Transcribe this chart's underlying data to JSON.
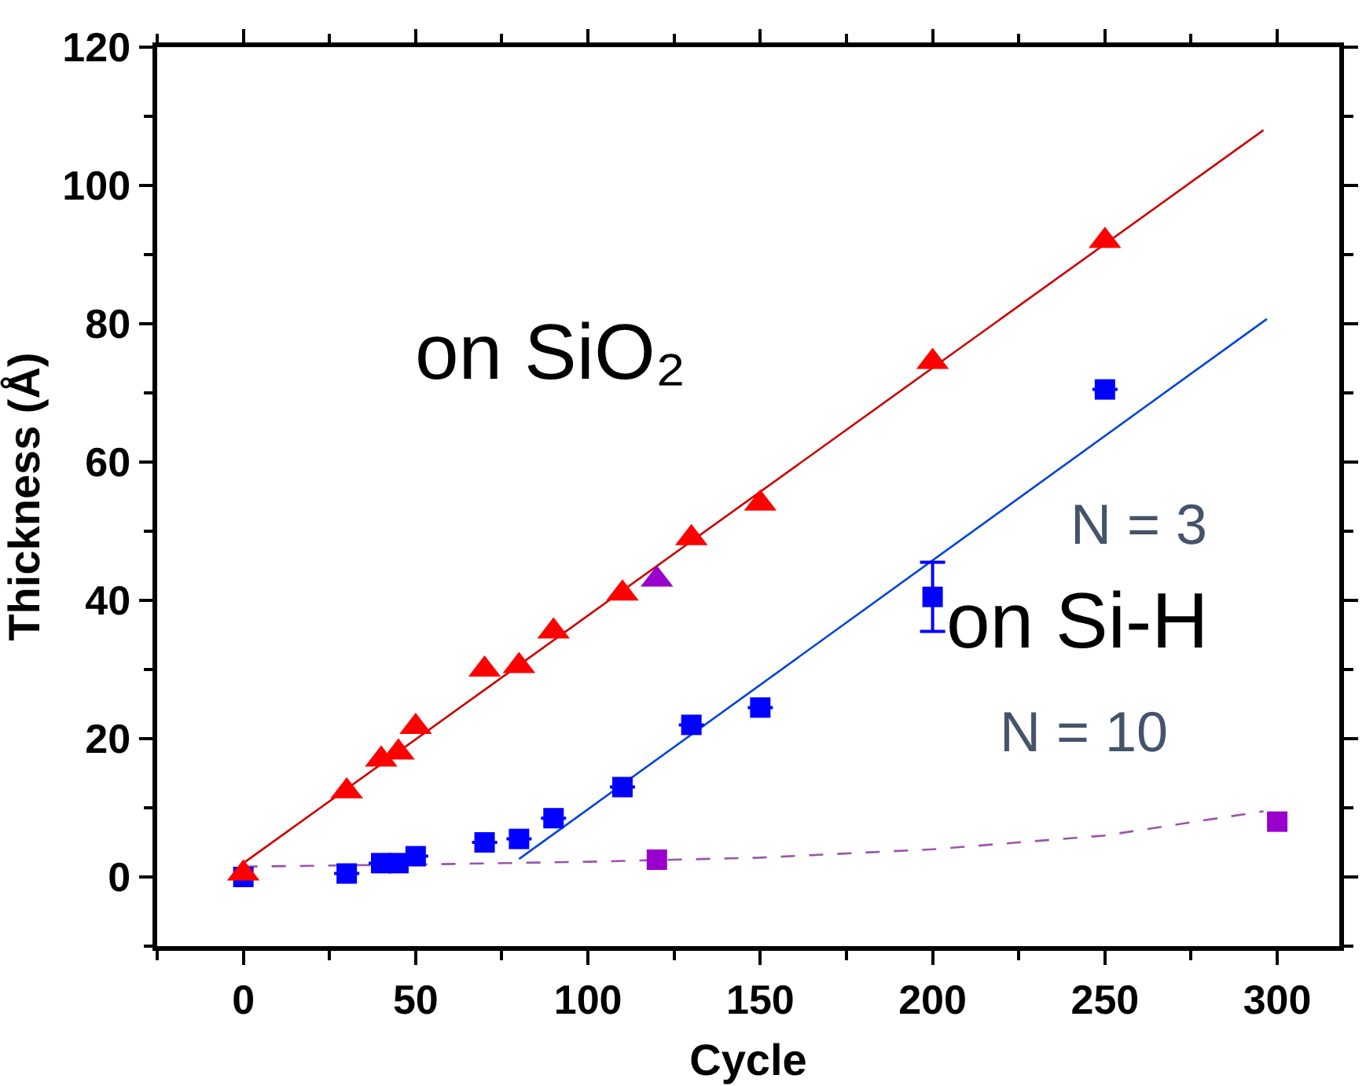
{
  "chart_data": {
    "type": "scatter",
    "xlabel": "Cycle",
    "ylabel": "Thickness (Å)",
    "xlim": [
      -25,
      318
    ],
    "ylim": [
      -10,
      120
    ],
    "xticks": [
      0,
      50,
      100,
      150,
      200,
      250,
      300
    ],
    "yticks": [
      0,
      20,
      40,
      60,
      80,
      100,
      120
    ],
    "legend": false,
    "annotations": [
      "on SiO₂",
      "on Si-H",
      "N = 3",
      "N = 10"
    ],
    "series": [
      {
        "type": "line",
        "color": "#cc0000",
        "line_style": "solid",
        "marker": "none",
        "x": [
          0,
          296
        ],
        "values": [
          2,
          108
        ]
      },
      {
        "type": "line",
        "color": "#0044dd",
        "line_style": "solid",
        "marker": "none",
        "x": [
          80,
          297
        ],
        "values": [
          2.6,
          80.7
        ]
      },
      {
        "type": "line",
        "color": "#9955aa",
        "line_style": "dashed",
        "marker": "none",
        "x": [
          0,
          50,
          100,
          150,
          200,
          250,
          296
        ],
        "values": [
          1.5,
          1.8,
          2.2,
          2.8,
          4,
          6,
          9.5
        ]
      },
      {
        "color": "#0000ff",
        "marker": "square",
        "x": [
          0,
          30,
          40,
          45,
          50,
          70,
          80,
          90,
          110,
          130,
          150,
          200,
          250
        ],
        "values": [
          0,
          0.5,
          2,
          2,
          3,
          5,
          5.5,
          8.5,
          13,
          22,
          24.5,
          40.5,
          70.5
        ],
        "errors": [
          null,
          null,
          null,
          null,
          null,
          null,
          null,
          null,
          null,
          null,
          null,
          5,
          null
        ]
      },
      {
        "color": "#ff0000",
        "marker": "triangle",
        "x": [
          0,
          30,
          40,
          45,
          50,
          70,
          80,
          90,
          110,
          130,
          150,
          200,
          250
        ],
        "values": [
          0.5,
          12.4,
          17,
          18,
          21.7,
          30,
          30.5,
          35.5,
          41,
          49,
          54,
          74.5,
          92
        ]
      },
      {
        "color": "#9900cc",
        "marker": "triangle",
        "x": [
          120
        ],
        "values": [
          43
        ]
      },
      {
        "color": "#9900cc",
        "marker": "square",
        "x": [
          120,
          300
        ],
        "values": [
          2.5,
          8
        ]
      }
    ]
  }
}
